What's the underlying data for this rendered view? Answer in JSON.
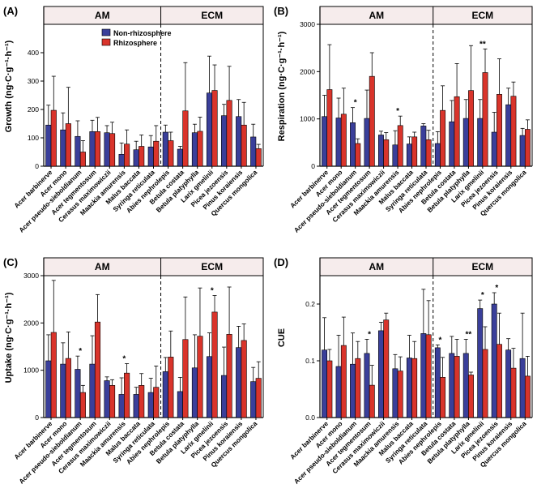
{
  "colors": {
    "non": "#3a3f9a",
    "rhizo": "#d9342b",
    "header": "#f6ecec",
    "axis": "#000000"
  },
  "legend": {
    "non": "Non-rhizosphere",
    "rhizo": "Rhizosphere"
  },
  "groups": [
    "AM",
    "ECM"
  ],
  "species": [
    "Acer barbinerve",
    "Acer mono",
    "Acer pseudo-sieboldianum",
    "Acer tegmentosum",
    "Cerasus maximowiczii",
    "Maackia amurensis",
    "Malus baccata",
    "Syringa reticulata",
    "Abies nephrolepis",
    "Betula costata",
    "Betula platyphylla",
    "Larix gmelinii",
    "Picea jezoensis",
    "Pinus koraiensis",
    "Quercus mongolica"
  ],
  "chart_data": [
    {
      "panel": "(A)",
      "type": "bar",
      "ylabel": "Growth (ng·C·g⁻¹·h⁻¹)",
      "ylim": [
        0,
        500
      ],
      "yticks": [
        0,
        100,
        200,
        300,
        400
      ],
      "show_legend": true,
      "series": [
        {
          "name": "Non-rhizosphere",
          "values": [
            145,
            128,
            105,
            122,
            118,
            42,
            58,
            68,
            120,
            60,
            118,
            258,
            178,
            175,
            103
          ],
          "errors": [
            70,
            60,
            55,
            40,
            25,
            40,
            30,
            40,
            25,
            10,
            30,
            130,
            40,
            60,
            45
          ]
        },
        {
          "name": "Rhizosphere",
          "values": [
            197,
            150,
            50,
            122,
            115,
            78,
            70,
            88,
            90,
            195,
            123,
            267,
            232,
            145,
            62
          ],
          "errors": [
            120,
            128,
            40,
            50,
            40,
            50,
            40,
            55,
            30,
            170,
            50,
            90,
            120,
            80,
            15
          ]
        }
      ],
      "significance": []
    },
    {
      "panel": "(B)",
      "type": "bar",
      "ylabel": "Respiration (ng·C·g⁻¹·h⁻¹)",
      "ylim": [
        0,
        3000
      ],
      "yticks": [
        0,
        1000,
        2000,
        3000
      ],
      "show_legend": false,
      "series": [
        {
          "name": "Non-rhizosphere",
          "values": [
            1050,
            1020,
            920,
            1010,
            660,
            450,
            470,
            850,
            480,
            940,
            1010,
            1010,
            720,
            1300,
            650
          ],
          "errors": [
            450,
            420,
            320,
            600,
            80,
            300,
            150,
            50,
            250,
            450,
            400,
            400,
            420,
            350,
            150
          ]
        },
        {
          "name": "Rhizosphere",
          "values": [
            1620,
            1100,
            480,
            1900,
            560,
            860,
            620,
            560,
            1180,
            1470,
            1600,
            1980,
            1520,
            1480,
            780
          ],
          "errors": [
            950,
            550,
            100,
            500,
            150,
            200,
            100,
            200,
            520,
            700,
            950,
            500,
            750,
            300,
            200
          ]
        }
      ],
      "significance": [
        {
          "index": 2,
          "label": "*"
        },
        {
          "index": 5,
          "label": "*"
        },
        {
          "index": 11,
          "label": "**"
        }
      ]
    },
    {
      "panel": "(C)",
      "type": "bar",
      "ylabel": "Uptake (ng·C·g⁻¹·h⁻¹)",
      "ylim": [
        0,
        3000
      ],
      "yticks": [
        0,
        1000,
        2000,
        3000
      ],
      "show_legend": false,
      "series": [
        {
          "name": "Non-rhizosphere",
          "values": [
            1200,
            1130,
            1020,
            1130,
            780,
            490,
            490,
            530,
            970,
            550,
            1050,
            1290,
            890,
            1480,
            760
          ],
          "errors": [
            550,
            450,
            280,
            600,
            80,
            350,
            150,
            300,
            300,
            300,
            700,
            500,
            600,
            450,
            300
          ]
        },
        {
          "name": "Rhizosphere",
          "values": [
            1800,
            1250,
            530,
            2020,
            680,
            940,
            680,
            640,
            1280,
            1650,
            1720,
            2230,
            1760,
            1630,
            830
          ],
          "errors": [
            1100,
            560,
            150,
            580,
            120,
            200,
            250,
            450,
            550,
            900,
            1020,
            350,
            1000,
            350,
            350
          ]
        }
      ],
      "significance": [
        {
          "index": 2,
          "label": "*"
        },
        {
          "index": 5,
          "label": "*"
        },
        {
          "index": 11,
          "label": "*"
        }
      ]
    },
    {
      "panel": "(D)",
      "type": "bar",
      "ylabel": "CUE",
      "ylim": [
        0,
        0.25
      ],
      "yticks": [
        0.0,
        0.1,
        0.2
      ],
      "show_legend": false,
      "series": [
        {
          "name": "Non-rhizosphere",
          "values": [
            0.119,
            0.09,
            0.094,
            0.113,
            0.153,
            0.086,
            0.105,
            0.148,
            0.123,
            0.113,
            0.113,
            0.192,
            0.2,
            0.119,
            0.104
          ],
          "errors": [
            0.057,
            0.055,
            0.055,
            0.025,
            0.015,
            0.025,
            0.04,
            0.078,
            0.005,
            0.03,
            0.025,
            0.015,
            0.02,
            0.02,
            0.08
          ]
        },
        {
          "name": "Rhizosphere",
          "values": [
            0.1,
            0.127,
            0.104,
            0.057,
            0.172,
            0.082,
            0.104,
            0.146,
            0.071,
            0.108,
            0.075,
            0.12,
            0.129,
            0.087,
            0.073
          ],
          "errors": [
            0.02,
            0.05,
            0.03,
            0.035,
            0.012,
            0.025,
            0.03,
            0.06,
            0.035,
            0.03,
            0.005,
            0.04,
            0.055,
            0.035,
            0.035
          ]
        }
      ],
      "significance": [
        {
          "index": 3,
          "label": "*"
        },
        {
          "index": 8,
          "label": "*"
        },
        {
          "index": 10,
          "label": "**"
        },
        {
          "index": 11,
          "label": "*"
        },
        {
          "index": 12,
          "label": "*"
        }
      ]
    }
  ]
}
